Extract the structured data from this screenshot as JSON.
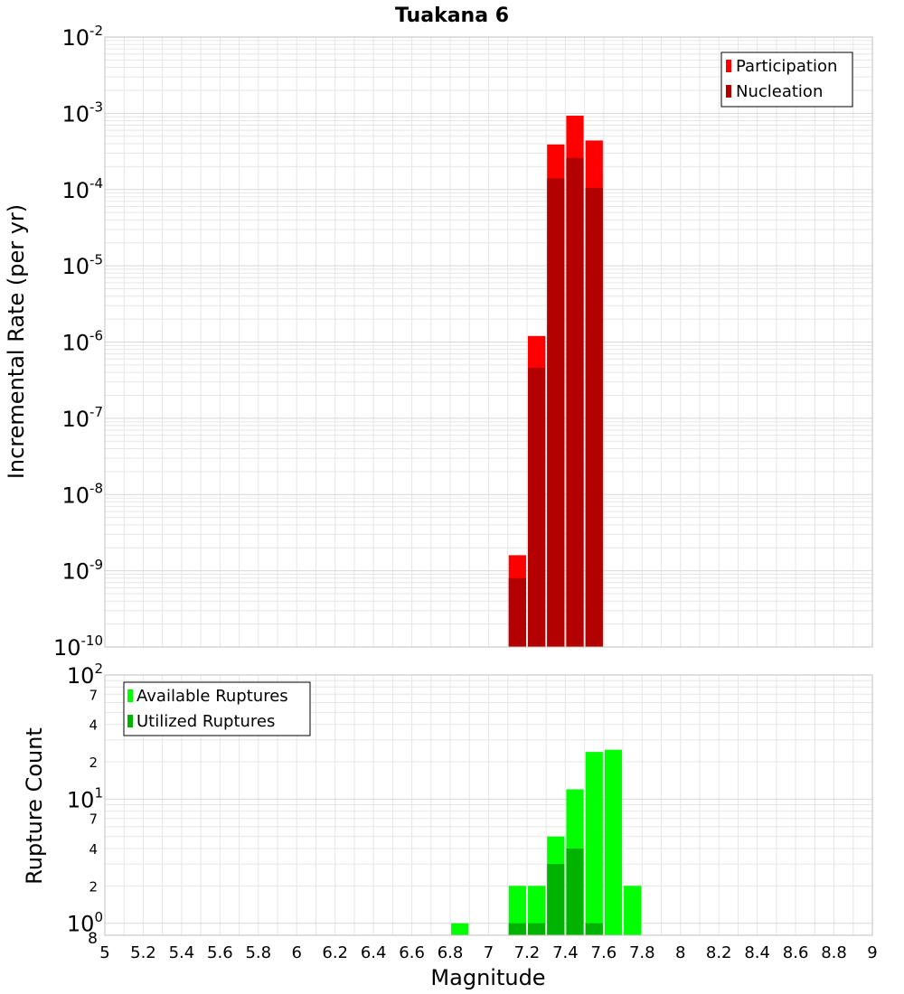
{
  "title": "Tuakana 6",
  "colors": {
    "participation": "#ff0000",
    "nucleation": "#b30000",
    "available": "#00ff00",
    "utilized": "#00b300",
    "grid": "#e6e6e6",
    "frame": "#c0c0c0"
  },
  "chart_data": [
    {
      "type": "bar",
      "ylabel": "Incremental Rate (per yr)",
      "yscale": "log",
      "ylim": [
        1e-10,
        0.01
      ],
      "xlim": [
        5,
        9
      ],
      "grid": true,
      "legend_position": "top-right",
      "y_ticks": [
        {
          "base": "10",
          "exp": "-10"
        },
        {
          "base": "10",
          "exp": "-9"
        },
        {
          "base": "10",
          "exp": "-8"
        },
        {
          "base": "10",
          "exp": "-7"
        },
        {
          "base": "10",
          "exp": "-6"
        },
        {
          "base": "10",
          "exp": "-5"
        },
        {
          "base": "10",
          "exp": "-4"
        },
        {
          "base": "10",
          "exp": "-3"
        },
        {
          "base": "10",
          "exp": "-2"
        }
      ],
      "x": [
        7.15,
        7.25,
        7.35,
        7.45,
        7.55
      ],
      "series": [
        {
          "name": "Participation",
          "values": [
            1.6e-09,
            1.2e-06,
            0.00039,
            0.00093,
            0.00044
          ]
        },
        {
          "name": "Nucleation",
          "values": [
            8e-10,
            4.6e-07,
            0.00014,
            0.00026,
            0.000105
          ]
        }
      ]
    },
    {
      "type": "bar",
      "ylabel": "Rupture Count",
      "xlabel": "Magnitude",
      "yscale": "log",
      "ylim": [
        0.8,
        100
      ],
      "xlim": [
        5,
        9
      ],
      "grid": true,
      "legend_position": "top-left",
      "bottom_label": "8",
      "y_major_ticks": [
        {
          "base": "10",
          "exp": "0"
        },
        {
          "base": "10",
          "exp": "1"
        },
        {
          "base": "10",
          "exp": "2"
        }
      ],
      "y_minor_ticks": [
        {
          "value": 2,
          "label": "2"
        },
        {
          "value": 4,
          "label": "4"
        },
        {
          "value": 7,
          "label": "7"
        },
        {
          "value": 20,
          "label": "2"
        },
        {
          "value": 40,
          "label": "4"
        },
        {
          "value": 70,
          "label": "7"
        }
      ],
      "x_ticks": [
        "5",
        "5.2",
        "5.4",
        "5.6",
        "5.8",
        "6",
        "6.2",
        "6.4",
        "6.6",
        "6.8",
        "7",
        "7.2",
        "7.4",
        "7.6",
        "7.8",
        "8",
        "8.2",
        "8.4",
        "8.6",
        "8.8",
        "9"
      ],
      "x": [
        6.85,
        7.15,
        7.25,
        7.35,
        7.45,
        7.55,
        7.65,
        7.75
      ],
      "series": [
        {
          "name": "Available Ruptures",
          "values": [
            1,
            2,
            2,
            5,
            12,
            24,
            25,
            2
          ]
        },
        {
          "name": "Utilized Ruptures",
          "values": [
            0,
            1,
            1,
            3,
            4,
            1,
            0,
            0
          ]
        }
      ]
    }
  ]
}
